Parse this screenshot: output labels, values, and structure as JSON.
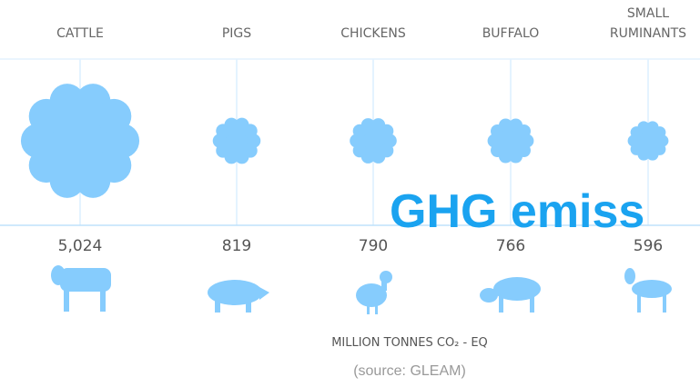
{
  "chart_data": {
    "type": "bubble",
    "categories": [
      "CATTLE",
      "PIGS",
      "CHICKENS",
      "BUFFALO",
      "SMALL RUMINANTS"
    ],
    "values": [
      5024,
      819,
      790,
      766,
      596
    ],
    "value_labels": [
      "5,024",
      "819",
      "790",
      "766",
      "596"
    ],
    "color": "#86ccfd",
    "unit_label": "MILLION TONNES CO₂ - EQ",
    "source": "(source: GLEAM)",
    "overlay_title": "GHG emiss"
  }
}
